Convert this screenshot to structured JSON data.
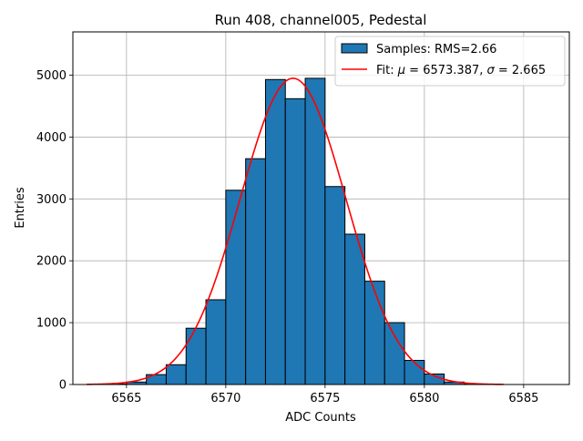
{
  "chart_data": {
    "type": "bar",
    "title": "Run 408, channel005, Pedestal",
    "xlabel": "ADC Counts",
    "ylabel": "Entries",
    "xlim": [
      6562.3,
      6587.3
    ],
    "ylim": [
      0,
      5700
    ],
    "grid": true,
    "legend_position": "top-right",
    "x_ticks": [
      {
        "value": 6565,
        "label": "6565"
      },
      {
        "value": 6570,
        "label": "6570"
      },
      {
        "value": 6575,
        "label": "6575"
      },
      {
        "value": 6580,
        "label": "6580"
      },
      {
        "value": 6585,
        "label": "6585"
      }
    ],
    "y_ticks": [
      {
        "value": 0,
        "label": "0"
      },
      {
        "value": 1000,
        "label": "1000"
      },
      {
        "value": 2000,
        "label": "2000"
      },
      {
        "value": 3000,
        "label": "3000"
      },
      {
        "value": 4000,
        "label": "4000"
      },
      {
        "value": 5000,
        "label": "5000"
      }
    ],
    "histogram": {
      "name": "Samples: RMS=2.66",
      "color": "#1f77b4",
      "edge_color": "#000000",
      "bins": [
        {
          "x0": 6564.0,
          "x1": 6565.0,
          "count": 8
        },
        {
          "x0": 6565.0,
          "x1": 6566.0,
          "count": 40
        },
        {
          "x0": 6566.0,
          "x1": 6567.0,
          "count": 160
        },
        {
          "x0": 6567.0,
          "x1": 6568.0,
          "count": 320
        },
        {
          "x0": 6568.0,
          "x1": 6569.0,
          "count": 910
        },
        {
          "x0": 6569.0,
          "x1": 6570.0,
          "count": 1370
        },
        {
          "x0": 6570.0,
          "x1": 6571.0,
          "count": 3140
        },
        {
          "x0": 6571.0,
          "x1": 6572.0,
          "count": 3650
        },
        {
          "x0": 6572.0,
          "x1": 6573.0,
          "count": 4930
        },
        {
          "x0": 6573.0,
          "x1": 6574.0,
          "count": 4620
        },
        {
          "x0": 6574.0,
          "x1": 6575.0,
          "count": 4950
        },
        {
          "x0": 6575.0,
          "x1": 6576.0,
          "count": 3200
        },
        {
          "x0": 6576.0,
          "x1": 6577.0,
          "count": 2430
        },
        {
          "x0": 6577.0,
          "x1": 6578.0,
          "count": 1670
        },
        {
          "x0": 6578.0,
          "x1": 6579.0,
          "count": 1000
        },
        {
          "x0": 6579.0,
          "x1": 6580.0,
          "count": 390
        },
        {
          "x0": 6580.0,
          "x1": 6581.0,
          "count": 170
        },
        {
          "x0": 6581.0,
          "x1": 6582.0,
          "count": 40
        },
        {
          "x0": 6582.0,
          "x1": 6583.0,
          "count": 8
        }
      ]
    },
    "fit": {
      "label_prefix": "Fit: ",
      "mu_symbol": "μ",
      "mu_text": " = 6573.387, ",
      "sigma_symbol": "σ",
      "sigma_text": " = 2.665",
      "color": "#ff0000",
      "mu": 6573.387,
      "sigma": 2.665,
      "amplitude": 4950,
      "x_range": [
        6563,
        6584
      ]
    }
  }
}
